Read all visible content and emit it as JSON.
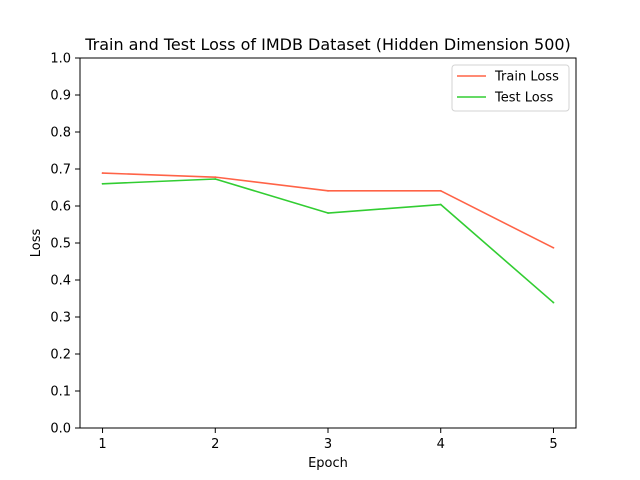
{
  "chart_data": {
    "type": "line",
    "title": "Train and Test Loss of IMDB Dataset (Hidden Dimension 500)",
    "xlabel": "Epoch",
    "ylabel": "Loss",
    "x": [
      1,
      2,
      3,
      4,
      5
    ],
    "x_tick_labels": [
      "1",
      "2",
      "3",
      "4",
      "5"
    ],
    "y_tick_labels": [
      "0.0",
      "0.1",
      "0.2",
      "0.3",
      "0.4",
      "0.5",
      "0.6",
      "0.7",
      "0.8",
      "0.9",
      "1.0"
    ],
    "ylim": [
      0,
      1
    ],
    "grid": false,
    "legend_position": "upper right",
    "series": [
      {
        "name": "Train Loss",
        "color": "#ff6347",
        "values": [
          0.689,
          0.678,
          0.641,
          0.641,
          0.487
        ]
      },
      {
        "name": "Test Loss",
        "color": "#32cd32",
        "values": [
          0.66,
          0.673,
          0.581,
          0.604,
          0.339
        ]
      }
    ]
  }
}
